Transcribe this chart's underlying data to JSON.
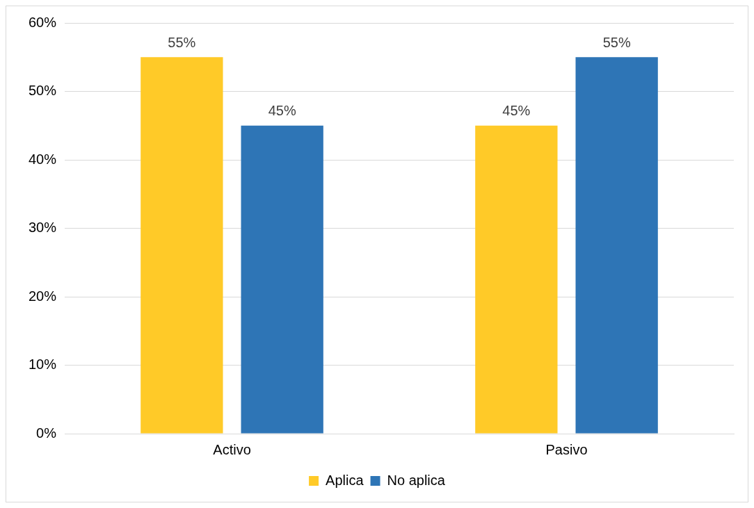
{
  "chart_data": {
    "type": "bar",
    "categories": [
      "Activo",
      "Pasivo"
    ],
    "series": [
      {
        "name": "Aplica",
        "color": "#ffca28",
        "values": [
          55,
          45
        ],
        "value_labels": [
          "55%",
          "45%"
        ]
      },
      {
        "name": "No aplica",
        "color": "#2e75b6",
        "values": [
          45,
          55
        ],
        "value_labels": [
          "45%",
          "55%"
        ]
      }
    ],
    "ylim": [
      0,
      60
    ],
    "yticks": [
      {
        "value": 0,
        "label": "0%"
      },
      {
        "value": 10,
        "label": "10%"
      },
      {
        "value": 20,
        "label": "20%"
      },
      {
        "value": 30,
        "label": "30%"
      },
      {
        "value": 40,
        "label": "40%"
      },
      {
        "value": 50,
        "label": "50%"
      },
      {
        "value": 60,
        "label": "60%"
      }
    ],
    "grid": "y",
    "legend": "bottom"
  }
}
